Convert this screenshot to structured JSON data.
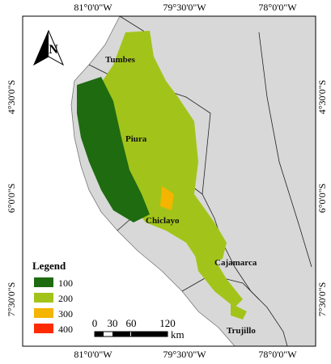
{
  "map": {
    "north_arrow": "N",
    "top_labels": [
      "81°0'0\"W",
      "79°30'0\"W",
      "78°0'0\"W"
    ],
    "bottom_labels": [
      "81°0'0\"W",
      "79°30'0\"W",
      "78°0'0\"W"
    ],
    "left_labels": [
      "4°30'0\"S",
      "6°0'0\"S",
      "7°30'0\"S"
    ],
    "right_labels": [
      "4°30'0\"S",
      "6°0'0\"S",
      "7°30'0\"S"
    ],
    "regions": [
      "Tumbes",
      "Piura",
      "Chiclayo",
      "Cajamarca",
      "Trujillo"
    ],
    "legend": {
      "title": "Legend",
      "items": [
        {
          "label": "100",
          "color": "#1e6b10"
        },
        {
          "label": "200",
          "color": "#a2c41a"
        },
        {
          "label": "300",
          "color": "#f4b400"
        },
        {
          "label": "400",
          "color": "#ff2b00"
        }
      ]
    },
    "scale_bar": {
      "labels": [
        "0",
        "30",
        "60",
        "120"
      ],
      "unit": "km"
    }
  }
}
